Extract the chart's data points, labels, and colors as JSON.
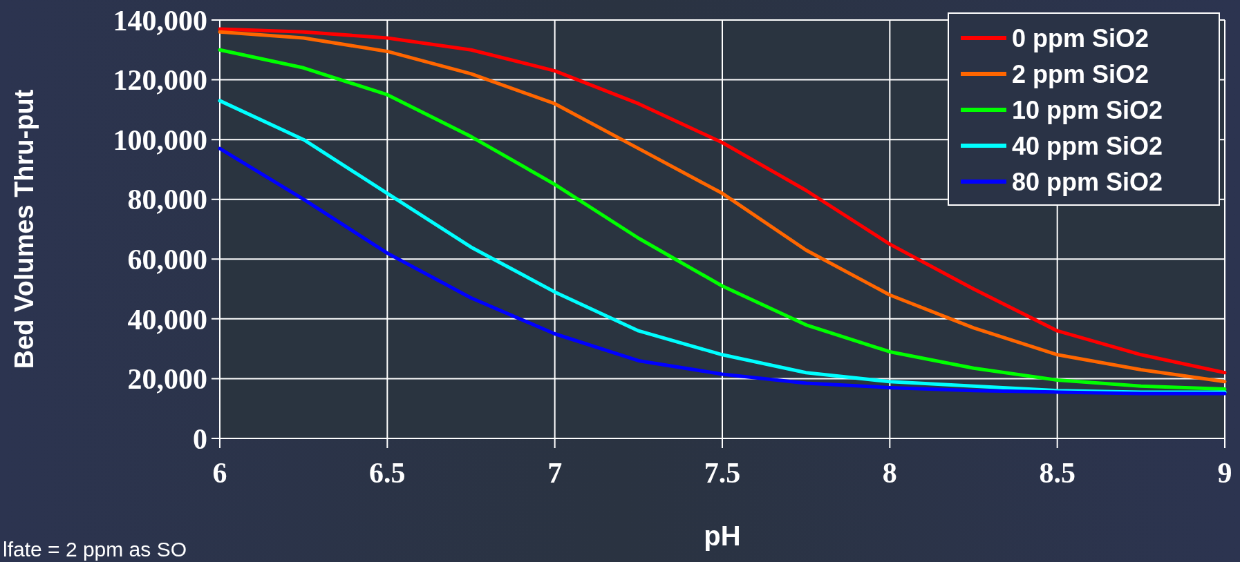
{
  "chart_data": {
    "type": "line",
    "xlabel": "pH",
    "ylabel": "Bed Volumes Thru-put",
    "x": [
      6,
      6.25,
      6.5,
      6.75,
      7,
      7.25,
      7.5,
      7.75,
      8,
      8.25,
      8.5,
      8.75,
      9
    ],
    "series": [
      {
        "name": "0 ppm SiO2",
        "color": "#ff0000",
        "values": [
          137000,
          136000,
          134000,
          130000,
          123000,
          112000,
          99000,
          83000,
          65000,
          50000,
          36000,
          28000,
          22000
        ]
      },
      {
        "name": "2 ppm SiO2",
        "color": "#ff6600",
        "values": [
          136000,
          134000,
          129500,
          122000,
          112000,
          97000,
          82000,
          63000,
          48000,
          37000,
          28000,
          23000,
          19000
        ]
      },
      {
        "name": "10 ppm SiO2",
        "color": "#00ff00",
        "values": [
          130000,
          124000,
          115000,
          101000,
          85000,
          67000,
          51000,
          38000,
          29000,
          23500,
          19500,
          17500,
          16500
        ]
      },
      {
        "name": "40 ppm SiO2",
        "color": "#00ffff",
        "values": [
          113000,
          100000,
          82000,
          64000,
          49000,
          36000,
          28000,
          22000,
          19000,
          17500,
          16000,
          15500,
          15500
        ]
      },
      {
        "name": "80 ppm SiO2",
        "color": "#0000ff",
        "values": [
          97000,
          80000,
          62000,
          47000,
          35000,
          26000,
          21500,
          18500,
          17000,
          16000,
          15500,
          15000,
          15000
        ]
      }
    ],
    "xlim": [
      6,
      9
    ],
    "xticks": [
      6,
      6.5,
      7,
      7.5,
      8,
      8.5,
      9
    ],
    "ylim": [
      0,
      140000
    ],
    "yticks": [
      {
        "value": 0,
        "label": "0"
      },
      {
        "value": 20000,
        "label": "20,000"
      },
      {
        "value": 40000,
        "label": "40,000"
      },
      {
        "value": 60000,
        "label": "60,000"
      },
      {
        "value": 80000,
        "label": "80,000"
      },
      {
        "value": 100000,
        "label": "100,000"
      },
      {
        "value": 120000,
        "label": "120,000"
      },
      {
        "value": 140000,
        "label": "140,000"
      }
    ],
    "grid": true,
    "legend": "top right",
    "marker": "none",
    "line_style": "solid",
    "annotations": [
      "lfate = 2 ppm as SO"
    ]
  }
}
